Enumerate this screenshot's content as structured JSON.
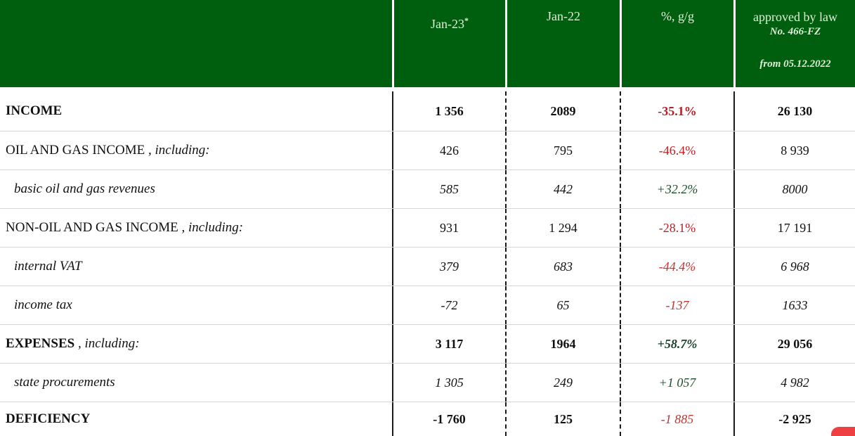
{
  "chart_data": {
    "type": "table",
    "title": "Budget income and expenses table",
    "columns": [
      "",
      "Jan-23 *",
      "Jan-22",
      "%, g/g",
      "approved by law No. 466-FZ from 05.12.2022"
    ],
    "rows": [
      {
        "label": "INCOME",
        "suffix": "",
        "jan23": "1 356",
        "jan22": "2089",
        "pct": "-35.1%",
        "approved": "26 130",
        "style": "bold",
        "pct_style": "red-bold"
      },
      {
        "label": "OIL AND GAS INCOME",
        "suffix": " , including:",
        "jan23": "426",
        "jan22": "795",
        "pct": "-46.4%",
        "approved": "8 939",
        "style": "plain",
        "pct_style": "red"
      },
      {
        "label": "basic oil and gas revenues",
        "suffix": "",
        "jan23": "585",
        "jan22": "442",
        "pct": "+32.2%",
        "approved": "8000",
        "style": "sub",
        "pct_style": "green-italic"
      },
      {
        "label": "NON-OIL AND GAS INCOME",
        "suffix": " , including:",
        "jan23": "931",
        "jan22": "1 294",
        "pct": "-28.1%",
        "approved": "17 191",
        "style": "plain",
        "pct_style": "red"
      },
      {
        "label": "internal VAT",
        "suffix": "",
        "jan23": "379",
        "jan22": "683",
        "pct": "-44.4%",
        "approved": "6 968",
        "style": "sub",
        "pct_style": "red-italic"
      },
      {
        "label": "income tax",
        "suffix": "",
        "jan23": "-72",
        "jan22": "65",
        "pct": "-137",
        "approved": "1633",
        "style": "sub",
        "pct_style": "red-italic"
      },
      {
        "label": "EXPENSES",
        "suffix": " , including:",
        "jan23": "3 117",
        "jan22": "1964",
        "pct": "+58.7%",
        "approved": "29 056",
        "style": "bold",
        "pct_style": "green-bold-italic"
      },
      {
        "label": "state procurements",
        "suffix": "",
        "jan23": "1 305",
        "jan22": "249",
        "pct": "+1 057",
        "approved": "4 982",
        "style": "sub",
        "pct_style": "green-italic"
      },
      {
        "label": "DEFICIENCY",
        "suffix": "",
        "jan23": "-1 760",
        "jan22": "125",
        "pct": "-1 885",
        "approved": "-2 925",
        "style": "bold",
        "pct_style": "red-italic"
      }
    ]
  },
  "header": {
    "col_jan23": "Jan-23",
    "col_jan23_footnote": "*",
    "col_jan22": "Jan-22",
    "col_pct": "%, g/g",
    "col_approved_line1": "approved by law",
    "col_approved_line2": "No. 466-FZ",
    "col_approved_line3": "from 05.12.2022"
  },
  "colors": {
    "header_green": "#005f0e",
    "header_text": "#ddefd5",
    "negative_red": "#b92025",
    "positive_green": "#1d4f2c",
    "row_line_gray": "#d6d6d6",
    "badge_red": "#ee3f43"
  }
}
